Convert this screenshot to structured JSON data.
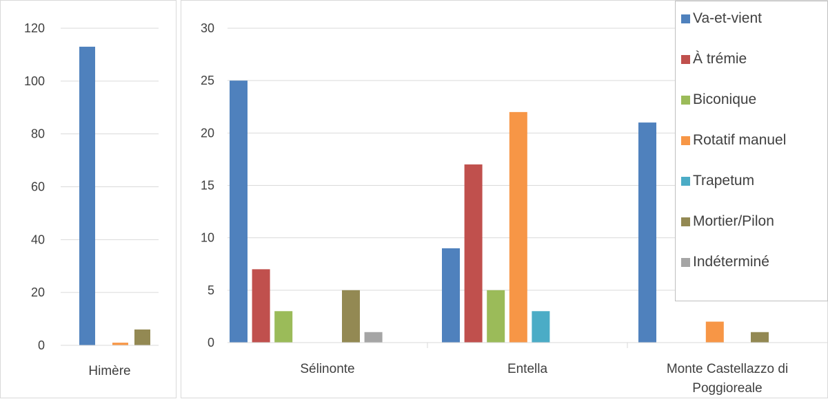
{
  "chart_data": [
    {
      "type": "bar",
      "categories": [
        "Himère"
      ],
      "ylim": [
        0,
        120
      ],
      "yticks": [
        0,
        20,
        40,
        60,
        80,
        100,
        120
      ],
      "grid": true,
      "series": [
        {
          "name": "Va-et-vient",
          "color": "#4F81BD",
          "values": [
            113
          ]
        },
        {
          "name": "À trémie",
          "color": "#C0504D",
          "values": [
            0
          ]
        },
        {
          "name": "Biconique",
          "color": "#9BBB59",
          "values": [
            0
          ]
        },
        {
          "name": "Rotatif manuel",
          "color": "#F79646",
          "values": [
            1
          ]
        },
        {
          "name": "Trapetum",
          "color": "#4BACC6",
          "values": [
            0
          ]
        },
        {
          "name": "Mortier/Pilon",
          "color": "#938953",
          "values": [
            6
          ]
        },
        {
          "name": "Indéterminé",
          "color": "#A5A5A5",
          "values": [
            0
          ]
        }
      ]
    },
    {
      "type": "bar",
      "categories": [
        "Sélinonte",
        "Entella",
        "Monte Castellazzo di Poggioreale"
      ],
      "ylim": [
        0,
        30
      ],
      "yticks": [
        0,
        5,
        10,
        15,
        20,
        25,
        30
      ],
      "grid": true,
      "legend": "top-right",
      "series": [
        {
          "name": "Va-et-vient",
          "color": "#4F81BD",
          "values": [
            25,
            9,
            21
          ]
        },
        {
          "name": "À trémie",
          "color": "#C0504D",
          "values": [
            7,
            17,
            0
          ]
        },
        {
          "name": "Biconique",
          "color": "#9BBB59",
          "values": [
            3,
            5,
            0
          ]
        },
        {
          "name": "Rotatif manuel",
          "color": "#F79646",
          "values": [
            0,
            22,
            2
          ]
        },
        {
          "name": "Trapetum",
          "color": "#4BACC6",
          "values": [
            0,
            3,
            0
          ]
        },
        {
          "name": "Mortier/Pilon",
          "color": "#938953",
          "values": [
            5,
            0,
            1
          ]
        },
        {
          "name": "Indéterminé",
          "color": "#A5A5A5",
          "values": [
            1,
            0,
            0
          ]
        }
      ]
    }
  ],
  "legend": {
    "items": [
      "Va-et-vient",
      "À trémie",
      "Biconique",
      "Rotatif manuel",
      "Trapetum",
      "Mortier/Pilon",
      "Indéterminé"
    ]
  }
}
